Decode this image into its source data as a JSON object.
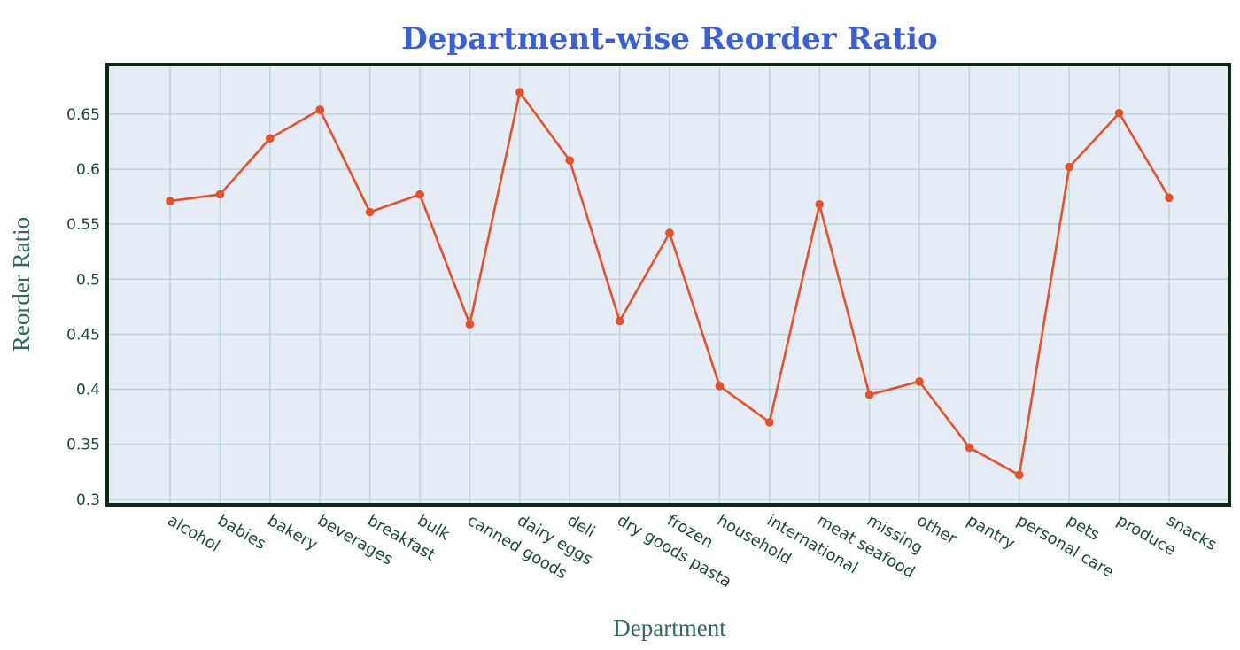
{
  "colors": {
    "title": "#3b5fd4",
    "axis_title": "#2e6b5a",
    "tick_label": "#1a4a3a",
    "plot_background": "#e5ecf6",
    "grid": "#b8d4d4",
    "plot_border": "#0c2a12",
    "line": "#e4512b"
  },
  "chart_data": {
    "type": "line",
    "title": "Department-wise Reorder Ratio",
    "xlabel": "Department",
    "ylabel": "Reorder Ratio",
    "ylim": [
      0.295,
      0.695
    ],
    "yticks": [
      0.3,
      0.35,
      0.4,
      0.45,
      0.5,
      0.55,
      0.6,
      0.65
    ],
    "ytick_labels": [
      "0.3",
      "0.35",
      "0.4",
      "0.45",
      "0.5",
      "0.55",
      "0.6",
      "0.65"
    ],
    "grid": true,
    "categories": [
      "alcohol",
      "babies",
      "bakery",
      "beverages",
      "breakfast",
      "bulk",
      "canned goods",
      "dairy eggs",
      "deli",
      "dry goods pasta",
      "frozen",
      "household",
      "international",
      "meat seafood",
      "missing",
      "other",
      "pantry",
      "personal care",
      "pets",
      "produce",
      "snacks"
    ],
    "values": [
      0.571,
      0.577,
      0.628,
      0.654,
      0.561,
      0.577,
      0.459,
      0.67,
      0.608,
      0.462,
      0.542,
      0.403,
      0.37,
      0.568,
      0.395,
      0.407,
      0.347,
      0.322,
      0.602,
      0.651,
      0.574
    ]
  }
}
